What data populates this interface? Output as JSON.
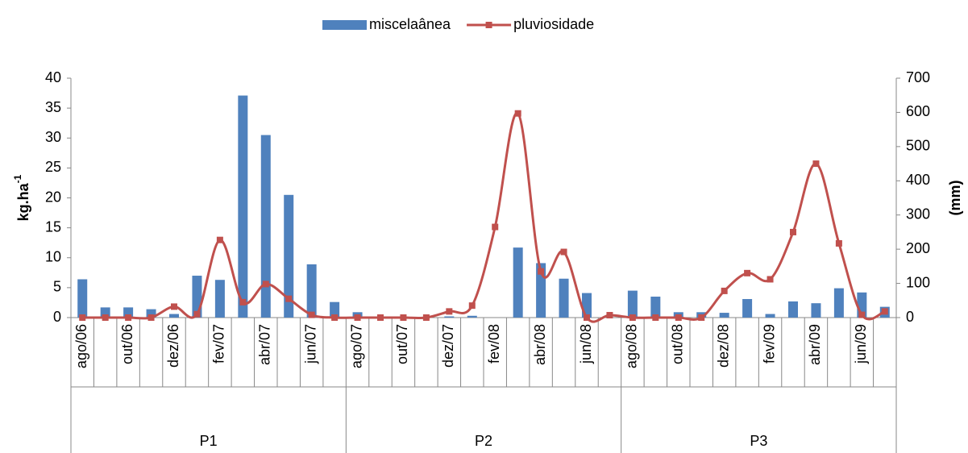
{
  "chart_data": {
    "type": "bar-line",
    "y_label": "kg.ha",
    "y_label_superscript": "-1",
    "y2_label": "(mm)",
    "categories": [
      "ago/06",
      null,
      "out/06",
      null,
      "dez/06",
      null,
      "fev/07",
      null,
      "abr/07",
      null,
      "jun/07",
      null,
      "ago/07",
      null,
      "out/07",
      null,
      "dez/07",
      null,
      "fev/08",
      null,
      "abr/08",
      null,
      "jun/08",
      null,
      "ago/08",
      null,
      "out/08",
      null,
      "dez/08",
      null,
      "fev/09",
      null,
      "abr/09",
      null,
      "jun/09",
      null
    ],
    "groups": [
      "P1",
      "P2",
      "P3"
    ],
    "series": [
      {
        "name": "miscelaânea",
        "type": "bar",
        "color": "#4f81bd",
        "values": [
          6.4,
          1.7,
          1.7,
          1.4,
          0.6,
          7.0,
          6.3,
          37.1,
          30.5,
          20.5,
          8.9,
          2.6,
          0.9,
          0.1,
          0.1,
          0,
          0.2,
          0.3,
          0,
          11.7,
          9.1,
          6.5,
          4.1,
          0,
          4.5,
          3.5,
          0.9,
          0.9,
          0.8,
          3.1,
          0.6,
          2.7,
          2.4,
          4.9,
          4.2,
          1.8
        ]
      },
      {
        "name": "pluviosidade",
        "type": "line",
        "color": "#c0504d",
        "axis": "y2",
        "values": [
          0,
          0,
          0,
          0,
          32,
          10,
          227,
          45,
          98,
          55,
          8,
          0,
          0,
          0,
          0,
          0,
          18,
          35,
          265,
          597,
          135,
          192,
          0,
          7,
          0,
          0,
          0,
          0,
          78,
          130,
          112,
          250,
          450,
          217,
          8,
          18
        ]
      }
    ],
    "ylim": [
      0,
      40
    ],
    "yticks": [
      0,
      5,
      10,
      15,
      20,
      25,
      30,
      35,
      40
    ],
    "y2lim": [
      0,
      700
    ],
    "y2ticks": [
      0,
      100,
      200,
      300,
      400,
      500,
      600,
      700
    ],
    "legend": "top"
  }
}
